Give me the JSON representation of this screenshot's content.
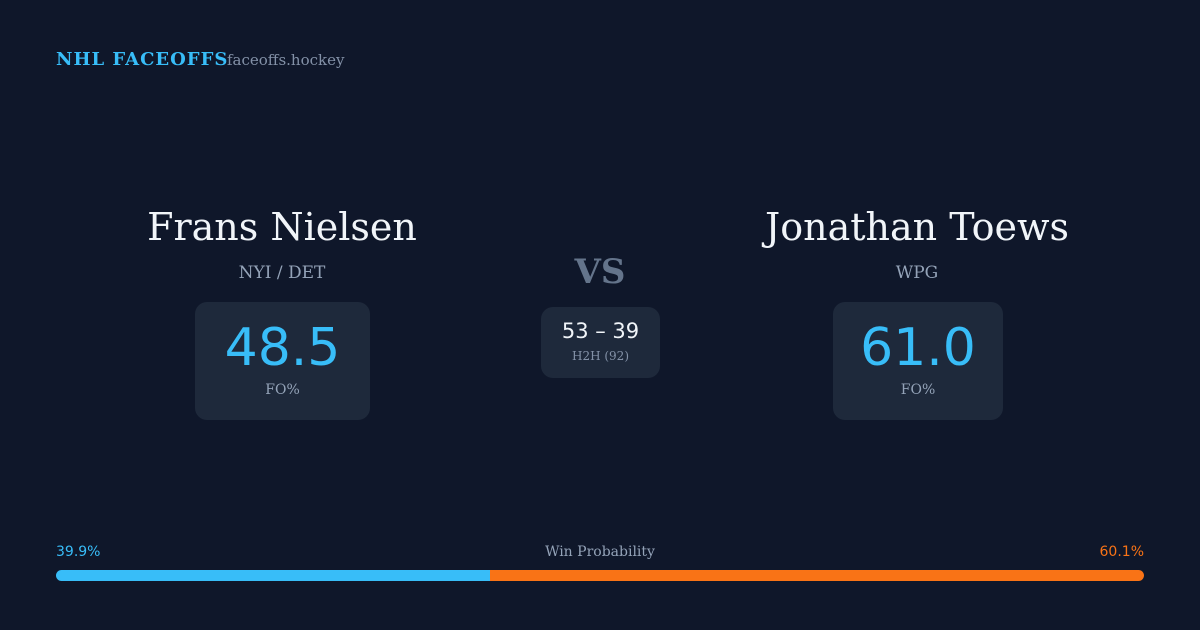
{
  "header": {
    "title": "NHL FACEOFFS",
    "site": "faceoffs.hockey"
  },
  "players": [
    {
      "name": "Frans Nielsen",
      "team": "NYI / DET",
      "fo_pct": "48.5",
      "fo_label": "FO%"
    },
    {
      "name": "Jonathan Toews",
      "team": "WPG",
      "fo_pct": "61.0",
      "fo_label": "FO%"
    }
  ],
  "versus": "VS",
  "h2h": {
    "score": "53 – 39",
    "label": "H2H (92)"
  },
  "win_probability": {
    "title": "Win Probability",
    "left": {
      "value": 39.9,
      "label": "39.9%",
      "color": "#38bdf8"
    },
    "right": {
      "value": 60.1,
      "label": "60.1%",
      "color": "#f97316"
    }
  }
}
